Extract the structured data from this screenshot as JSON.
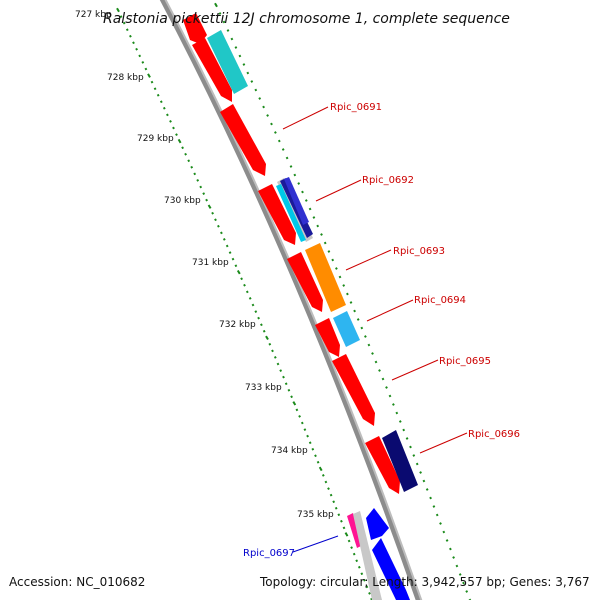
{
  "title": "Ralstonia pickettii 12J chromosome 1, complete sequence",
  "accession_text": "Accession: NC_010682",
  "topology_text": "Topology: circular; Length: 3,942,557 bp; Genes: 3,767",
  "colors": {
    "backbone": "#8c8c8c",
    "forward_gene": "#ff0000",
    "label_forward": "#cc0000",
    "label_reverse": "#0000cc",
    "ruler_dots": "#1a8a1a"
  },
  "ruler": [
    {
      "label": "727 kbp"
    },
    {
      "label": "728 kbp"
    },
    {
      "label": "729 kbp"
    },
    {
      "label": "730 kbp"
    },
    {
      "label": "731 kbp"
    },
    {
      "label": "732 kbp"
    },
    {
      "label": "733 kbp"
    },
    {
      "label": "734 kbp"
    },
    {
      "label": "735 kbp"
    }
  ],
  "gene_labels": [
    {
      "name": "Rpic_0691",
      "strand": "forward"
    },
    {
      "name": "Rpic_0692",
      "strand": "forward"
    },
    {
      "name": "Rpic_0693",
      "strand": "forward"
    },
    {
      "name": "Rpic_0694",
      "strand": "forward"
    },
    {
      "name": "Rpic_0695",
      "strand": "forward"
    },
    {
      "name": "Rpic_0696",
      "strand": "forward"
    },
    {
      "name": "Rpic_0697",
      "strand": "reverse"
    }
  ]
}
